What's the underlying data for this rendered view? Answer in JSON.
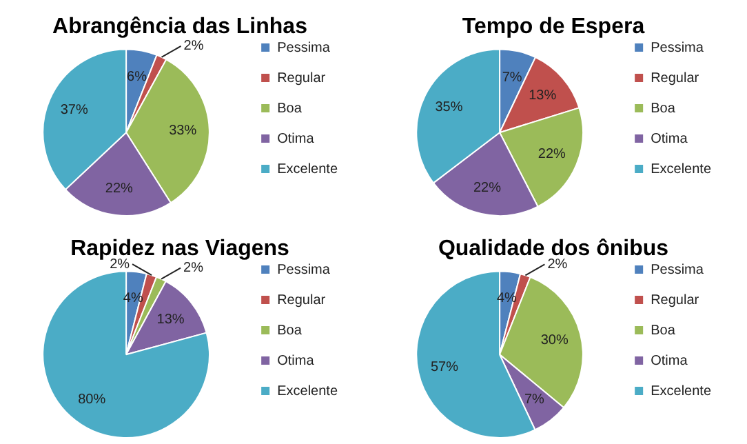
{
  "chart_data": [
    {
      "type": "pie",
      "title": "Abrangência das Linhas",
      "categories": [
        "Pessima",
        "Regular",
        "Boa",
        "Otima",
        "Excelente"
      ],
      "values": [
        6,
        2,
        33,
        22,
        37
      ],
      "colors": [
        "#4f81bd",
        "#c0504d",
        "#9bbb59",
        "#8064a2",
        "#4bacc6"
      ],
      "value_labels": [
        "6%",
        "2%",
        "33%",
        "22%",
        "37%"
      ],
      "legend": "right"
    },
    {
      "type": "pie",
      "title": "Tempo de Espera",
      "categories": [
        "Pessima",
        "Regular",
        "Boa",
        "Otima",
        "Excelente"
      ],
      "values": [
        7,
        13,
        22,
        22,
        35
      ],
      "colors": [
        "#4f81bd",
        "#c0504d",
        "#9bbb59",
        "#8064a2",
        "#4bacc6"
      ],
      "value_labels": [
        "7%",
        "13%",
        "22%",
        "22%",
        "35%"
      ],
      "legend": "right"
    },
    {
      "type": "pie",
      "title": "Rapidez nas Viagens",
      "categories": [
        "Pessima",
        "Regular",
        "Boa",
        "Otima",
        "Excelente"
      ],
      "values": [
        4,
        2,
        2,
        13,
        80
      ],
      "colors": [
        "#4f81bd",
        "#c0504d",
        "#9bbb59",
        "#8064a2",
        "#4bacc6"
      ],
      "value_labels": [
        "4%",
        "2%",
        "2%",
        "13%",
        "80%"
      ],
      "legend": "right"
    },
    {
      "type": "pie",
      "title": "Qualidade dos ônibus",
      "categories": [
        "Pessima",
        "Regular",
        "Boa",
        "Otima",
        "Excelente"
      ],
      "values": [
        4,
        2,
        30,
        7,
        57
      ],
      "colors": [
        "#4f81bd",
        "#c0504d",
        "#9bbb59",
        "#8064a2",
        "#4bacc6"
      ],
      "value_labels": [
        "4%",
        "2%",
        "30%",
        "7%",
        "57%"
      ],
      "legend": "right"
    }
  ]
}
